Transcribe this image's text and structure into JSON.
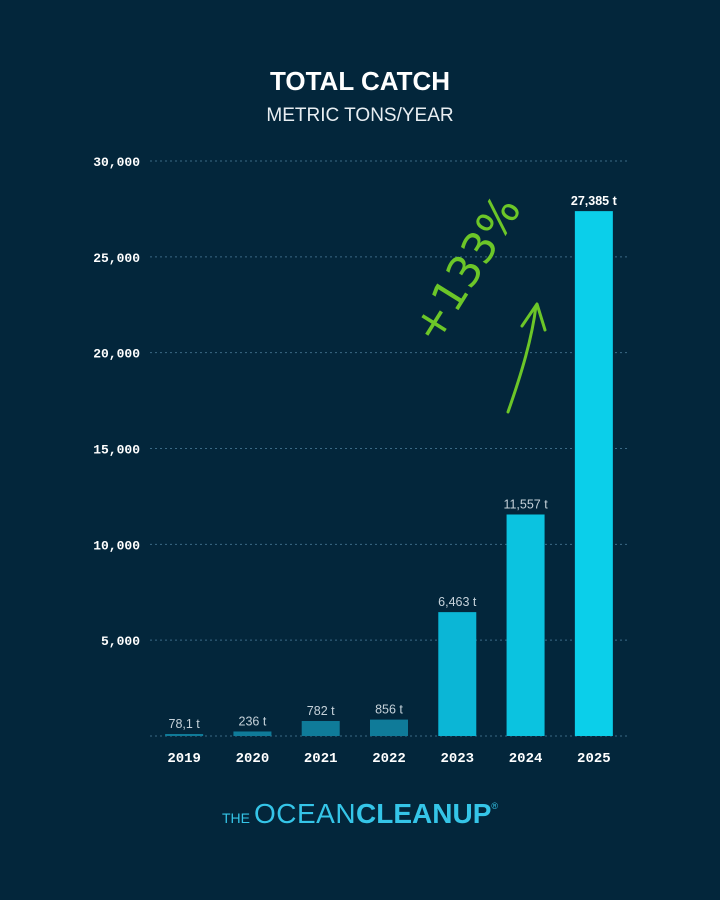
{
  "chart_data": {
    "type": "bar",
    "title": "TOTAL CATCH",
    "subtitle": "METRIC TONS/YEAR",
    "categories": [
      "2019",
      "2020",
      "2021",
      "2022",
      "2023",
      "2024",
      "2025"
    ],
    "values": [
      78.1,
      236,
      782,
      856,
      6463,
      11557,
      27385
    ],
    "data_labels": [
      "78,1 t",
      "236 t",
      "782 t",
      "856 t",
      "6,463 t",
      "11,557 t",
      "27,385 t"
    ],
    "ylim": [
      0,
      30000
    ],
    "yticks": [
      5000,
      10000,
      15000,
      20000,
      25000,
      30000
    ],
    "ytick_labels": [
      "5,000",
      "10,000",
      "15,000",
      "20,000",
      "25,000",
      "30,000"
    ],
    "grid": true,
    "bar_colors": [
      "#0f7b99",
      "#0f7b99",
      "#0f7b99",
      "#0f7b99",
      "#0bb6d6",
      "#0bc3e0",
      "#0bcfea"
    ],
    "annotation": {
      "text": "+133%",
      "color": "#6cc628"
    }
  },
  "branding": {
    "the": "THE",
    "ocean": "OCEAN",
    "cleanup": "CLEANUP",
    "registered": "®",
    "color": "#35c5e8"
  }
}
